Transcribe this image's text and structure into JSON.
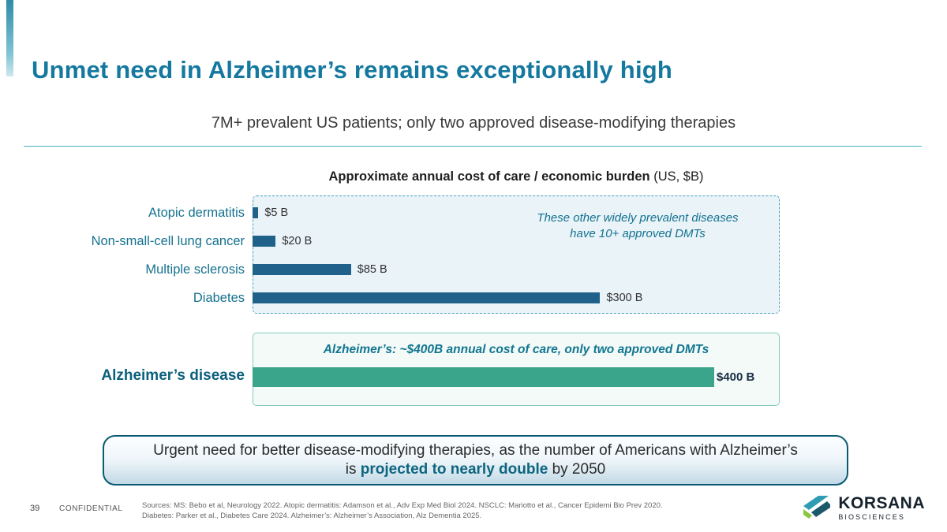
{
  "slide": {
    "title": "Unmet need in Alzheimer’s remains exceptionally high",
    "subtitle": "7M+ prevalent US patients; only two approved disease-modifying therapies"
  },
  "chart_data": {
    "type": "bar",
    "orientation": "horizontal",
    "title_bold": "Approximate annual cost of care / economic burden",
    "title_suffix": " (US, $B)",
    "categories": [
      "Atopic dermatitis",
      "Non-small-cell lung cancer",
      "Multiple sclerosis",
      "Diabetes"
    ],
    "values": [
      5,
      20,
      85,
      300
    ],
    "value_labels": [
      "$5 B",
      "$20 B",
      "$85 B",
      "$300 B"
    ],
    "bar_color": "#1f618a",
    "xmax": 455,
    "xlabel": "",
    "ylabel": "",
    "annotation_line1": "These other widely prevalent diseases",
    "annotation_line2": "have 10+ approved DMTs",
    "alzheimers": {
      "label": "Alzheimer’s disease",
      "value": 400,
      "value_label": "$400 B",
      "bar_color": "#3ba58b",
      "box_title": "Alzheimer’s: ~$400B annual cost of care, only two approved DMTs"
    }
  },
  "callout": {
    "line1": "Urgent need for better disease-modifying therapies, as the number of Americans with Alzheimer’s",
    "line2_prefix": "is ",
    "line2_bold": "projected to nearly double",
    "line2_suffix": " by 2050"
  },
  "footer": {
    "page_number": "39",
    "confidential": "CONFIDENTIAL",
    "sources_line1": "Sources: MS: Bebo et al, Neurology 2022. Atopic dermatitis: Adamson et al., Adv Exp Med Biol 2024. NSCLC: Mariotto et al., Cancer Epidemi Bio Prev 2020.",
    "sources_line2": "Diabetes: Parker et al., Diabetes Care 2024. Alzheimer’s: Alzheimer’s Association, Alz Dementia 2025.",
    "logo_name": "KORSANA",
    "logo_sub": "BIOSCIENCES"
  }
}
